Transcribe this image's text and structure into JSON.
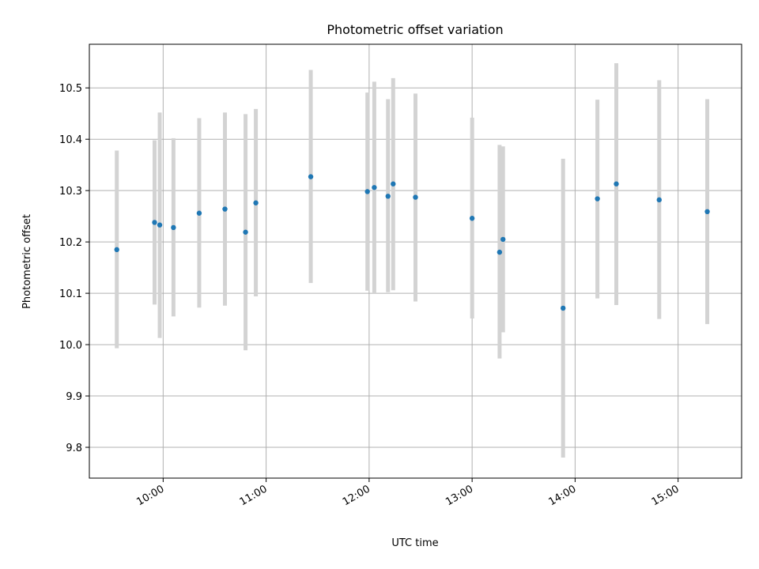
{
  "chart_data": {
    "type": "scatter",
    "title": "Photometric offset variation",
    "xlabel": "UTC time",
    "ylabel": "Photometric offset",
    "x_ticks": [
      "10:00",
      "11:00",
      "12:00",
      "13:00",
      "14:00",
      "15:00"
    ],
    "y_ticks": [
      "9.8",
      "9.9",
      "10.0",
      "10.1",
      "10.2",
      "10.3",
      "10.4",
      "10.5"
    ],
    "xlim": [
      "09:17",
      "15:37"
    ],
    "ylim": [
      9.74,
      10.585
    ],
    "grid": true,
    "colors": {
      "point": "#1f77b4",
      "errorbar": "#d3d3d3"
    },
    "points": [
      {
        "time": "09:33",
        "y": 10.185,
        "yerr_low": 9.993,
        "yerr_high": 10.378
      },
      {
        "time": "09:55",
        "y": 10.238,
        "yerr_low": 10.078,
        "yerr_high": 10.398
      },
      {
        "time": "09:58",
        "y": 10.233,
        "yerr_low": 10.013,
        "yerr_high": 10.452
      },
      {
        "time": "10:06",
        "y": 10.228,
        "yerr_low": 10.055,
        "yerr_high": 10.402
      },
      {
        "time": "10:21",
        "y": 10.256,
        "yerr_low": 10.072,
        "yerr_high": 10.441
      },
      {
        "time": "10:36",
        "y": 10.264,
        "yerr_low": 10.076,
        "yerr_high": 10.452
      },
      {
        "time": "10:48",
        "y": 10.219,
        "yerr_low": 9.989,
        "yerr_high": 10.449
      },
      {
        "time": "10:54",
        "y": 10.276,
        "yerr_low": 10.094,
        "yerr_high": 10.459
      },
      {
        "time": "11:26",
        "y": 10.327,
        "yerr_low": 10.12,
        "yerr_high": 10.535
      },
      {
        "time": "11:59",
        "y": 10.298,
        "yerr_low": 10.105,
        "yerr_high": 10.491
      },
      {
        "time": "12:03",
        "y": 10.306,
        "yerr_low": 10.1,
        "yerr_high": 10.512
      },
      {
        "time": "12:11",
        "y": 10.289,
        "yerr_low": 10.102,
        "yerr_high": 10.478
      },
      {
        "time": "12:14",
        "y": 10.313,
        "yerr_low": 10.106,
        "yerr_high": 10.519
      },
      {
        "time": "12:27",
        "y": 10.287,
        "yerr_low": 10.084,
        "yerr_high": 10.489
      },
      {
        "time": "13:00",
        "y": 10.246,
        "yerr_low": 10.051,
        "yerr_high": 10.442
      },
      {
        "time": "13:16",
        "y": 10.18,
        "yerr_low": 9.973,
        "yerr_high": 10.389
      },
      {
        "time": "13:18",
        "y": 10.205,
        "yerr_low": 10.024,
        "yerr_high": 10.386
      },
      {
        "time": "13:53",
        "y": 10.071,
        "yerr_low": 9.78,
        "yerr_high": 10.362
      },
      {
        "time": "14:13",
        "y": 10.284,
        "yerr_low": 10.09,
        "yerr_high": 10.477
      },
      {
        "time": "14:24",
        "y": 10.313,
        "yerr_low": 10.077,
        "yerr_high": 10.548
      },
      {
        "time": "14:49",
        "y": 10.282,
        "yerr_low": 10.05,
        "yerr_high": 10.515
      },
      {
        "time": "15:17",
        "y": 10.259,
        "yerr_low": 10.04,
        "yerr_high": 10.478
      }
    ]
  }
}
